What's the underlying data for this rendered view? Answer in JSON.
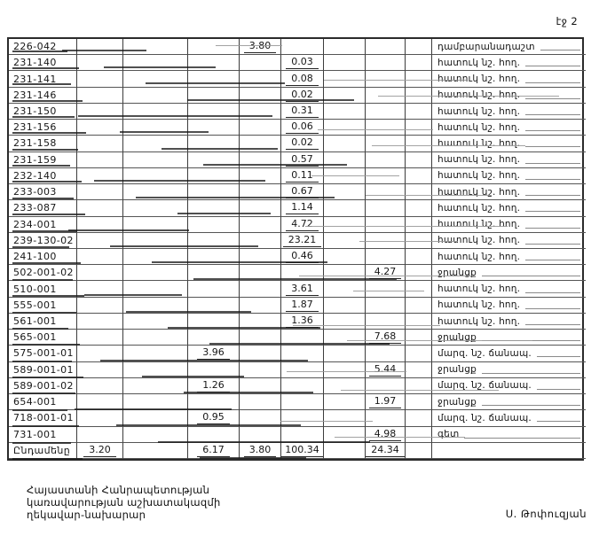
{
  "page": {
    "number_label": "էջ 2"
  },
  "table": {
    "rows": [
      [
        "226-042",
        "",
        "",
        "",
        "3.80",
        "",
        "",
        "",
        "",
        "դամբարանադաշտ"
      ],
      [
        "231-140",
        "",
        "",
        "",
        "",
        "0.03",
        "",
        "",
        "",
        "հատուկ նշ. հող."
      ],
      [
        "231-141",
        "",
        "",
        "",
        "",
        "0.08",
        "",
        "",
        "",
        "հատուկ նշ. հող."
      ],
      [
        "231-146",
        "",
        "",
        "",
        "",
        "0.02",
        "",
        "",
        "",
        "հատուկ նշ. հող."
      ],
      [
        "231-150",
        "",
        "",
        "",
        "",
        "0.31",
        "",
        "",
        "",
        "հատուկ նշ. հող."
      ],
      [
        "231-156",
        "",
        "",
        "",
        "",
        "0.06",
        "",
        "",
        "",
        "հատուկ նշ. հող."
      ],
      [
        "231-158",
        "",
        "",
        "",
        "",
        "0.02",
        "",
        "",
        "",
        "հատուկ նշ. հող."
      ],
      [
        "231-159",
        "",
        "",
        "",
        "",
        "0.57",
        "",
        "",
        "",
        "հատուկ նշ. հող."
      ],
      [
        "232-140",
        "",
        "",
        "",
        "",
        "0.11",
        "",
        "",
        "",
        "հատուկ նշ. հող."
      ],
      [
        "233-003",
        "",
        "",
        "",
        "",
        "0.67",
        "",
        "",
        "",
        "հատուկ նշ. հող."
      ],
      [
        "233-087",
        "",
        "",
        "",
        "",
        "1.14",
        "",
        "",
        "",
        "հատուկ նշ. հող."
      ],
      [
        "234-001",
        "",
        "",
        "",
        "",
        "4.72",
        "",
        "",
        "",
        "հատուկ նշ. հող."
      ],
      [
        "239-130-02",
        "",
        "",
        "",
        "",
        "23.21",
        "",
        "",
        "",
        "հատուկ նշ. հող."
      ],
      [
        "241-100",
        "",
        "",
        "",
        "",
        "0.46",
        "",
        "",
        "",
        "հատուկ նշ. հող."
      ],
      [
        "502-001-02",
        "",
        "",
        "",
        "",
        "",
        "",
        "4.27",
        "",
        "ջրանցք"
      ],
      [
        "510-001",
        "",
        "",
        "",
        "",
        "3.61",
        "",
        "",
        "",
        "հատուկ նշ. հող."
      ],
      [
        "555-001",
        "",
        "",
        "",
        "",
        "1.87",
        "",
        "",
        "",
        "հատուկ նշ. հող."
      ],
      [
        "561-001",
        "",
        "",
        "",
        "",
        "1.36",
        "",
        "",
        "",
        "հատուկ նշ. հող."
      ],
      [
        "565-001",
        "",
        "",
        "",
        "",
        "",
        "",
        "7.68",
        "",
        "ջրանցք"
      ],
      [
        "575-001-01",
        "",
        "",
        "3.96",
        "",
        "",
        "",
        "",
        "",
        "մարզ. նշ. ճանապ."
      ],
      [
        "589-001-01",
        "",
        "",
        "",
        "",
        "",
        "",
        "5.44",
        "",
        "ջրանցք"
      ],
      [
        "589-001-02",
        "",
        "",
        "1.26",
        "",
        "",
        "",
        "",
        "",
        "մարզ. նշ. ճանապ."
      ],
      [
        "654-001",
        "",
        "",
        "",
        "",
        "",
        "",
        "1.97",
        "",
        "ջրանցք"
      ],
      [
        "718-001-01",
        "",
        "",
        "0.95",
        "",
        "",
        "",
        "",
        "",
        "մարզ. նշ. ճանապ."
      ],
      [
        "731-001",
        "",
        "",
        "",
        "",
        "",
        "",
        "4.98",
        "",
        "գետ"
      ],
      [
        "Ընդամենը",
        "3.20",
        "",
        "6.17",
        "3.80",
        "100.34",
        "",
        "24.34",
        "",
        ""
      ]
    ]
  },
  "footer": {
    "org_lines": [
      "Հայաստանի Հանրապետության",
      "կառավարության աշխատակազմի",
      "ղեկավար-նախարար"
    ],
    "signature": "Ս. Թոփուզյան"
  },
  "colors": {
    "ink": "#161616",
    "grid": "#3c3c3c",
    "artifact_gray": "#999999"
  }
}
